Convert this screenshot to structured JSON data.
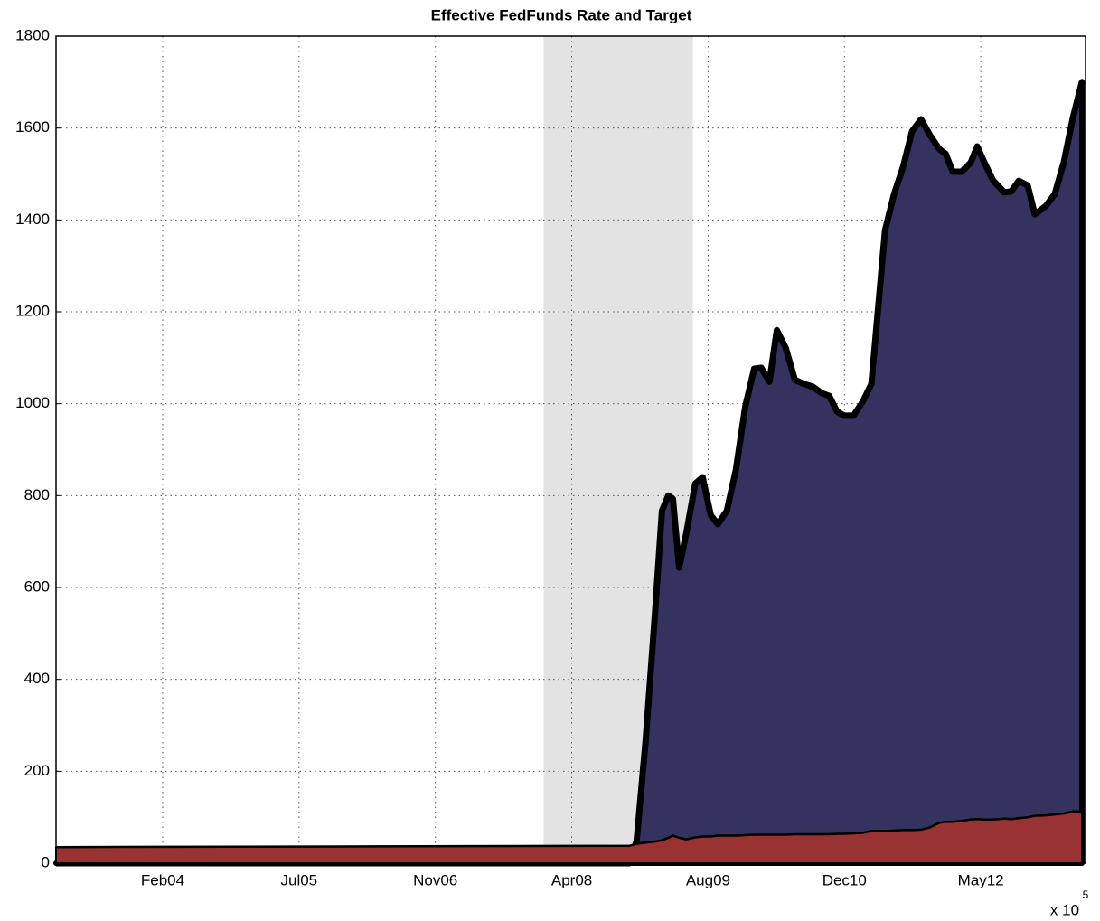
{
  "chart_data": {
    "type": "area",
    "title": "Effective FedFunds Rate and Target",
    "x_multiplier": "x 10",
    "x_exponent": "5",
    "xlim": [
      731609,
      735384
    ],
    "xticks": [
      {
        "value": 732000,
        "label": "Feb04"
      },
      {
        "value": 732500,
        "label": "Jul05"
      },
      {
        "value": 733000,
        "label": "Nov06"
      },
      {
        "value": 733500,
        "label": "Apr08"
      },
      {
        "value": 734000,
        "label": "Aug09"
      },
      {
        "value": 734500,
        "label": "Dec10"
      },
      {
        "value": 735000,
        "label": "May12"
      }
    ],
    "ylim": [
      0,
      1800
    ],
    "yticks": [
      0,
      200,
      400,
      600,
      800,
      1000,
      1200,
      1400,
      1600,
      1800
    ],
    "grid": true,
    "shade": [
      733397,
      733944
    ],
    "shade_color": "#e3e3e3",
    "x": [
      731609,
      733712,
      733738,
      733771,
      733805,
      733831,
      733854,
      733871,
      733894,
      733920,
      733953,
      733980,
      734010,
      734036,
      734069,
      734102,
      734136,
      734169,
      734195,
      734225,
      734252,
      734285,
      734318,
      734351,
      734384,
      734417,
      734444,
      734473,
      734500,
      734533,
      734566,
      734599,
      734649,
      734682,
      734715,
      734748,
      734781,
      734814,
      734848,
      734871,
      734897,
      734930,
      734963,
      734987,
      735013,
      735046,
      735086,
      735112,
      735139,
      735172,
      735198,
      735238,
      735271,
      735304,
      735338,
      735371
    ],
    "series": [
      {
        "color": "#34335f",
        "values": [
          0,
          0,
          49,
          266,
          541,
          767,
          800,
          793,
          643,
          718,
          826,
          840,
          757,
          738,
          767,
          856,
          993,
          1076,
          1078,
          1048,
          1160,
          1121,
          1052,
          1043,
          1037,
          1023,
          1017,
          983,
          974,
          974,
          1003,
          1043,
          1377,
          1456,
          1515,
          1593,
          1619,
          1584,
          1554,
          1544,
          1505,
          1505,
          1525,
          1560,
          1525,
          1485,
          1460,
          1462,
          1485,
          1475,
          1412,
          1430,
          1456,
          1525,
          1623,
          1701
        ]
      },
      {
        "color": "#993333",
        "values": [
          35,
          38,
          42,
          45,
          47,
          50,
          55,
          60,
          55,
          52,
          56,
          58,
          58,
          60,
          60,
          60,
          61,
          62,
          62,
          62,
          62,
          62,
          63,
          63,
          63,
          63,
          63,
          64,
          64,
          65,
          66,
          70,
          70,
          71,
          72,
          72,
          73,
          78,
          88,
          90,
          90,
          92,
          95,
          96,
          95,
          95,
          97,
          96,
          98,
          100,
          103,
          104,
          106,
          108,
          113,
          112
        ]
      }
    ]
  }
}
